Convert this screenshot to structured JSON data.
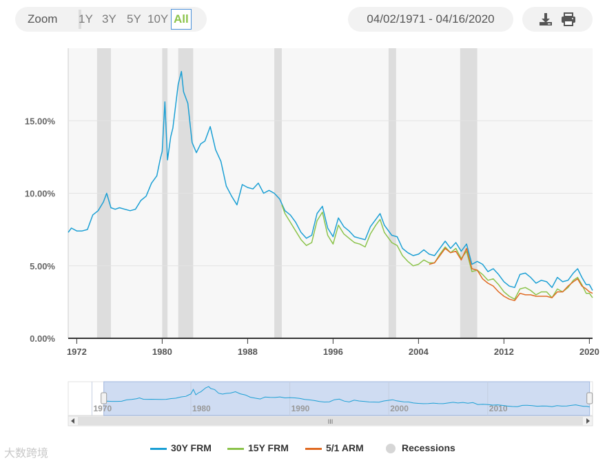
{
  "toolbar": {
    "zoom_label": "Zoom",
    "zoom_options": [
      "1Y",
      "3Y",
      "5Y",
      "10Y",
      "All"
    ],
    "active_zoom": "All",
    "date_range": "04/02/1971 - 04/16/2020",
    "download_icon": "download-icon",
    "print_icon": "print-icon"
  },
  "chart_data": {
    "type": "line",
    "title": "",
    "xlabel": "",
    "ylabel": "",
    "xlim": [
      1971.2,
      2020.3
    ],
    "ylim": [
      0,
      20
    ],
    "y_ticks": [
      {
        "value": 0,
        "label": "0.00%"
      },
      {
        "value": 5,
        "label": "5.00%"
      },
      {
        "value": 10,
        "label": "10.00%"
      },
      {
        "value": 15,
        "label": "15.00%"
      }
    ],
    "x_ticks": [
      {
        "value": 1972,
        "label": "1972"
      },
      {
        "value": 1980,
        "label": "1980"
      },
      {
        "value": 1988,
        "label": "1988"
      },
      {
        "value": 1996,
        "label": "1996"
      },
      {
        "value": 2004,
        "label": "2004"
      },
      {
        "value": 2012,
        "label": "2012"
      },
      {
        "value": 2020,
        "label": "2020"
      }
    ],
    "recessions": [
      [
        1973.9,
        1975.2
      ],
      [
        1980.0,
        1980.5
      ],
      [
        1981.5,
        1982.9
      ],
      [
        1990.5,
        1991.2
      ],
      [
        2001.2,
        2001.9
      ],
      [
        2007.9,
        2009.5
      ]
    ],
    "series": [
      {
        "name": "30Y FRM",
        "color": "#1a9fd4",
        "x": [
          1971.2,
          1971.5,
          1972,
          1972.5,
          1973,
          1973.5,
          1974,
          1974.5,
          1974.8,
          1975.2,
          1975.6,
          1976,
          1976.5,
          1977,
          1977.5,
          1978,
          1978.5,
          1979,
          1979.5,
          1979.8,
          1980.0,
          1980.25,
          1980.5,
          1980.8,
          1981.0,
          1981.5,
          1981.8,
          1982.0,
          1982.4,
          1982.8,
          1983.2,
          1983.6,
          1984.0,
          1984.5,
          1985.0,
          1985.5,
          1986.0,
          1986.5,
          1987.0,
          1987.5,
          1988.0,
          1988.5,
          1989.0,
          1989.5,
          1990.0,
          1990.5,
          1991.0,
          1991.5,
          1992.0,
          1992.5,
          1993.0,
          1993.5,
          1994.0,
          1994.5,
          1995.0,
          1995.5,
          1996.0,
          1996.5,
          1997.0,
          1997.5,
          1998.0,
          1998.5,
          1999.0,
          1999.5,
          2000.0,
          2000.4,
          2000.8,
          2001.5,
          2002.0,
          2002.5,
          2003.0,
          2003.5,
          2004.0,
          2004.5,
          2005.0,
          2005.5,
          2006.0,
          2006.5,
          2007.0,
          2007.5,
          2008.0,
          2008.5,
          2009.0,
          2009.5,
          2010.0,
          2010.5,
          2011.0,
          2011.5,
          2012.0,
          2012.5,
          2013.0,
          2013.5,
          2014.0,
          2014.5,
          2015.0,
          2015.5,
          2016.0,
          2016.5,
          2017.0,
          2017.5,
          2018.0,
          2018.5,
          2018.9,
          2019.3,
          2019.7,
          2020.0,
          2020.3
        ],
        "values": [
          7.3,
          7.6,
          7.4,
          7.4,
          7.5,
          8.5,
          8.8,
          9.4,
          10.0,
          9.0,
          8.9,
          9.0,
          8.9,
          8.8,
          8.9,
          9.5,
          9.8,
          10.7,
          11.2,
          12.3,
          12.9,
          16.3,
          12.3,
          13.9,
          14.5,
          17.5,
          18.4,
          17.0,
          16.2,
          13.5,
          12.8,
          13.4,
          13.6,
          14.6,
          13.0,
          12.2,
          10.5,
          9.8,
          9.2,
          10.6,
          10.4,
          10.3,
          10.7,
          10.0,
          10.2,
          10.0,
          9.6,
          8.8,
          8.5,
          8.0,
          7.3,
          6.9,
          7.1,
          8.6,
          9.1,
          7.6,
          7.0,
          8.3,
          7.7,
          7.4,
          7.0,
          6.9,
          6.8,
          7.7,
          8.2,
          8.6,
          7.8,
          7.1,
          7.0,
          6.2,
          5.9,
          5.7,
          5.8,
          6.1,
          5.8,
          5.7,
          6.2,
          6.7,
          6.2,
          6.6,
          6.0,
          6.5,
          5.1,
          5.3,
          5.1,
          4.6,
          4.8,
          4.4,
          3.9,
          3.6,
          3.5,
          4.4,
          4.5,
          4.2,
          3.8,
          4.0,
          3.9,
          3.5,
          4.2,
          3.9,
          4.0,
          4.5,
          4.8,
          4.2,
          3.7,
          3.7,
          3.3
        ]
      },
      {
        "name": "15Y FRM",
        "color": "#8bc34a",
        "x": [
          1991.2,
          1991.5,
          1992.0,
          1992.5,
          1993.0,
          1993.5,
          1994.0,
          1994.5,
          1995.0,
          1995.5,
          1996.0,
          1996.5,
          1997.0,
          1997.5,
          1998.0,
          1998.5,
          1999.0,
          1999.5,
          2000.0,
          2000.4,
          2000.8,
          2001.5,
          2002.0,
          2002.5,
          2003.0,
          2003.5,
          2004.0,
          2004.5,
          2005.0,
          2005.5,
          2006.0,
          2006.5,
          2007.0,
          2007.5,
          2008.0,
          2008.5,
          2009.0,
          2009.5,
          2010.0,
          2010.5,
          2011.0,
          2011.5,
          2012.0,
          2012.5,
          2013.0,
          2013.5,
          2014.0,
          2014.5,
          2015.0,
          2015.5,
          2016.0,
          2016.5,
          2017.0,
          2017.5,
          2018.0,
          2018.5,
          2018.9,
          2019.3,
          2019.7,
          2020.0,
          2020.3
        ],
        "values": [
          9.2,
          8.6,
          8.0,
          7.4,
          6.8,
          6.4,
          6.6,
          8.1,
          8.7,
          7.1,
          6.5,
          7.8,
          7.2,
          6.9,
          6.6,
          6.5,
          6.3,
          7.2,
          7.8,
          8.2,
          7.3,
          6.6,
          6.4,
          5.7,
          5.3,
          5.0,
          5.1,
          5.4,
          5.2,
          5.2,
          5.8,
          6.3,
          5.9,
          6.2,
          5.5,
          6.0,
          4.6,
          4.7,
          4.4,
          4.0,
          4.1,
          3.7,
          3.2,
          2.9,
          2.7,
          3.4,
          3.5,
          3.3,
          3.0,
          3.2,
          3.2,
          2.8,
          3.4,
          3.2,
          3.5,
          4.0,
          4.2,
          3.7,
          3.1,
          3.1,
          2.8
        ]
      },
      {
        "name": "5/1 ARM",
        "color": "#e06a22",
        "x": [
          2005.0,
          2005.5,
          2006.0,
          2006.5,
          2007.0,
          2007.5,
          2008.0,
          2008.5,
          2009.0,
          2009.5,
          2010.0,
          2010.5,
          2011.0,
          2011.5,
          2012.0,
          2012.5,
          2013.0,
          2013.5,
          2014.0,
          2014.5,
          2015.0,
          2015.5,
          2016.0,
          2016.5,
          2017.0,
          2017.5,
          2018.0,
          2018.5,
          2018.9,
          2019.3,
          2019.7,
          2020.0,
          2020.3
        ],
        "values": [
          5.1,
          5.2,
          5.7,
          6.2,
          5.9,
          6.0,
          5.4,
          6.2,
          4.8,
          4.7,
          4.1,
          3.8,
          3.6,
          3.2,
          2.9,
          2.7,
          2.6,
          3.1,
          3.0,
          3.0,
          2.9,
          2.9,
          2.9,
          2.8,
          3.2,
          3.2,
          3.6,
          3.9,
          4.1,
          3.6,
          3.4,
          3.2,
          3.1
        ]
      }
    ],
    "navigator": {
      "x_ticks": [
        {
          "value": 1970,
          "label": "1970"
        },
        {
          "value": 1980,
          "label": "1980"
        },
        {
          "value": 1990,
          "label": "1990"
        },
        {
          "value": 2000,
          "label": "2000"
        },
        {
          "value": 2010,
          "label": "2010"
        }
      ],
      "scrollbar_grip": "III"
    },
    "legend": [
      {
        "name": "30Y FRM",
        "color": "#1a9fd4"
      },
      {
        "name": "15Y FRM",
        "color": "#8bc34a"
      },
      {
        "name": "5/1 ARM",
        "color": "#e06a22"
      },
      {
        "name": "Recessions",
        "color": "#d6d6d6"
      }
    ]
  },
  "watermark": "大数跨境"
}
